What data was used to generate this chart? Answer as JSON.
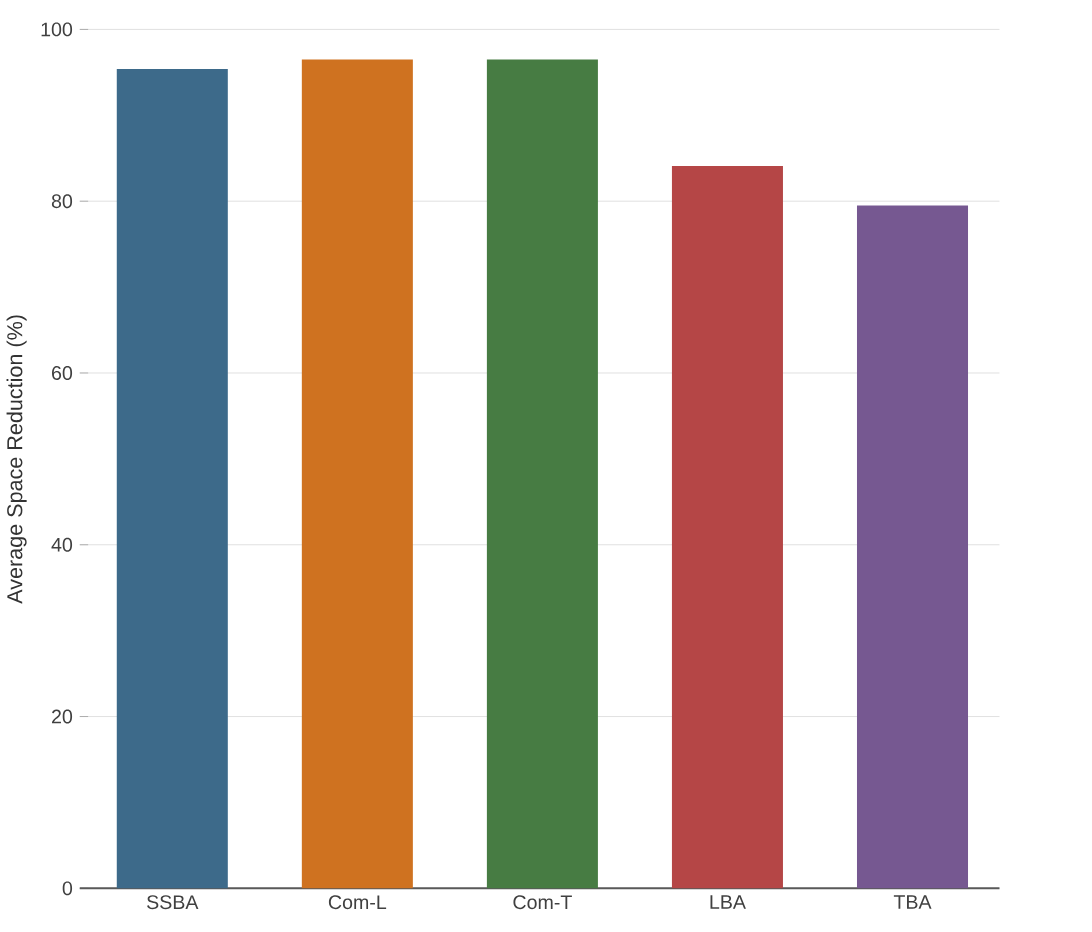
{
  "chart_data": {
    "type": "bar",
    "ylabel": "Average Space Reduction (%)",
    "categories": [
      "SSBA",
      "Com-L",
      "Com-T",
      "LBA",
      "TBA"
    ],
    "values": [
      95.4,
      96.5,
      96.5,
      84.1,
      79.5
    ],
    "colors": [
      "#3d6a8a",
      "#cf7220",
      "#477c43",
      "#b54646",
      "#765891"
    ],
    "ylim": [
      0,
      100
    ],
    "yticks": [
      0,
      20,
      40,
      60,
      80,
      100
    ],
    "grid": "y"
  }
}
